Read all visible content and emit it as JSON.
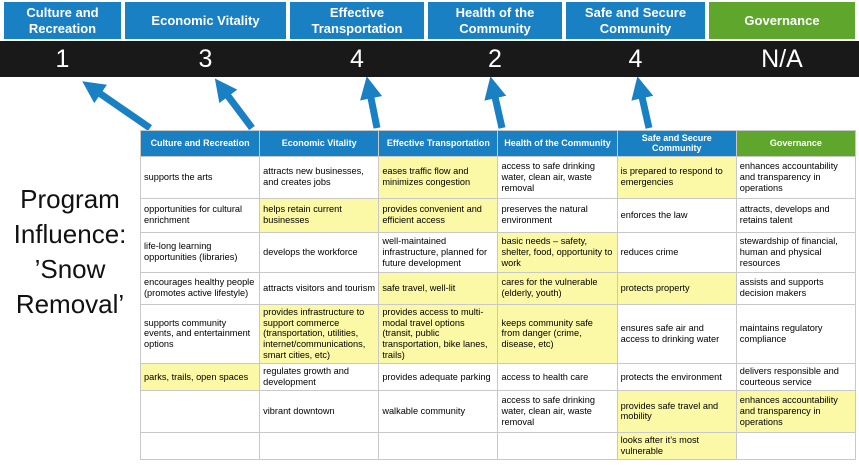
{
  "slide": {
    "title": "Program Influence: ’Snow Removal’",
    "title_lines": [
      "Program",
      "Influence:",
      "’Snow",
      "Removal’"
    ]
  },
  "colors": {
    "header_blue": "#1A80C4",
    "header_green": "#5FA62D",
    "score_bar_bg": "#191919",
    "highlight_yellow": "#FBF8A6",
    "arrow_blue": "#1A80C4"
  },
  "summary": {
    "columns": [
      {
        "label": "Culture and Recreation",
        "score": "1",
        "color": "blue"
      },
      {
        "label": "Economic Vitality",
        "score": "3",
        "color": "blue"
      },
      {
        "label": "Effective Transportation",
        "score": "4",
        "color": "blue"
      },
      {
        "label": "Health of the Community",
        "score": "2",
        "color": "blue"
      },
      {
        "label": "Safe and Secure Community",
        "score": "4",
        "color": "blue"
      },
      {
        "label": "Governance",
        "score": "N/A",
        "color": "green"
      }
    ]
  },
  "matrix": {
    "headers": [
      {
        "label": "Culture and Recreation",
        "color": "blue"
      },
      {
        "label": "Economic Vitality",
        "color": "blue"
      },
      {
        "label": "Effective Transportation",
        "color": "blue"
      },
      {
        "label": "Health of the Community",
        "color": "blue"
      },
      {
        "label": "Safe and Secure Community",
        "color": "blue"
      },
      {
        "label": "Governance",
        "color": "green"
      }
    ],
    "rows": [
      [
        {
          "text": "supports the arts",
          "hl": false
        },
        {
          "text": "attracts new businesses, and creates jobs",
          "hl": false
        },
        {
          "text": "eases traffic flow and minimizes congestion",
          "hl": true
        },
        {
          "text": "access to safe drinking water, clean air, waste removal",
          "hl": false
        },
        {
          "text": "is prepared to respond to emergencies",
          "hl": true
        },
        {
          "text": "enhances accountability and transparency in operations",
          "hl": false
        }
      ],
      [
        {
          "text": "opportunities for cultural enrichment",
          "hl": false
        },
        {
          "text": "helps retain current businesses",
          "hl": true
        },
        {
          "text": "provides convenient and efficient access",
          "hl": true
        },
        {
          "text": "preserves the natural environment",
          "hl": false
        },
        {
          "text": "enforces the law",
          "hl": false
        },
        {
          "text": "attracts, develops and retains talent",
          "hl": false
        }
      ],
      [
        {
          "text": "life-long learning opportunities (libraries)",
          "hl": false
        },
        {
          "text": "develops the workforce",
          "hl": false
        },
        {
          "text": "well-maintained infrastructure, planned for future development",
          "hl": false
        },
        {
          "text": "basic needs – safety, shelter, food, opportunity to work",
          "hl": true
        },
        {
          "text": "reduces crime",
          "hl": false
        },
        {
          "text": "stewardship of financial, human and physical resources",
          "hl": false
        }
      ],
      [
        {
          "text": "encourages healthy people (promotes active lifestyle)",
          "hl": false
        },
        {
          "text": "attracts visitors and tourism",
          "hl": false
        },
        {
          "text": "safe travel, well-lit",
          "hl": true
        },
        {
          "text": "cares for the vulnerable (elderly, youth)",
          "hl": true
        },
        {
          "text": "protects property",
          "hl": true
        },
        {
          "text": "assists and supports decision makers",
          "hl": false
        }
      ],
      [
        {
          "text": "supports community events, and entertainment options",
          "hl": false
        },
        {
          "text": "provides infrastructure to support commerce (transportation, utilities, internet/communications, smart cities, etc)",
          "hl": true
        },
        {
          "text": "provides access to multi-modal travel options (transit, public transportation, bike lanes, trails)",
          "hl": true
        },
        {
          "text": "keeps community safe from danger (crime, disease, etc)",
          "hl": true
        },
        {
          "text": "ensures safe air and access to drinking water",
          "hl": false
        },
        {
          "text": "maintains regulatory compliance",
          "hl": false
        }
      ],
      [
        {
          "text": "parks, trails, open spaces",
          "hl": true
        },
        {
          "text": "regulates growth and development",
          "hl": false
        },
        {
          "text": "provides adequate parking",
          "hl": false
        },
        {
          "text": "access to health care",
          "hl": false
        },
        {
          "text": "protects the environment",
          "hl": false
        },
        {
          "text": "delivers responsible and courteous service",
          "hl": false
        }
      ],
      [
        {
          "text": "",
          "hl": false
        },
        {
          "text": "vibrant downtown",
          "hl": false
        },
        {
          "text": "walkable community",
          "hl": false
        },
        {
          "text": "access to safe drinking water, clean air, waste removal",
          "hl": false
        },
        {
          "text": "provides safe travel and mobility",
          "hl": true
        },
        {
          "text": "enhances accountability and transparency in operations",
          "hl": true
        }
      ],
      [
        {
          "text": "",
          "hl": false
        },
        {
          "text": "",
          "hl": false
        },
        {
          "text": "",
          "hl": false
        },
        {
          "text": "",
          "hl": false
        },
        {
          "text": "looks after it’s most vulnerable",
          "hl": true
        },
        {
          "text": "",
          "hl": false
        }
      ]
    ]
  }
}
